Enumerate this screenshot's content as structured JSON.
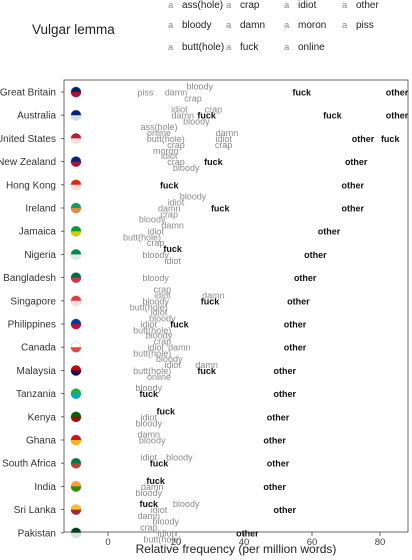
{
  "chart_data": {
    "type": "scatter",
    "xlabel": "Relative frequency (per million words)",
    "xlim": [
      -10,
      90
    ],
    "xticks": [
      0,
      20,
      40,
      60,
      80
    ],
    "legend": {
      "title": "Vulgar lemma",
      "placement": "top",
      "key_glyph": "a",
      "entries": [
        "ass(hole)",
        "crap",
        "idiot",
        "other",
        "bloody",
        "damn",
        "moron",
        "piss",
        "butt(hole)",
        "fuck",
        "online"
      ]
    },
    "series_colors": {
      "fuck": "#111111",
      "other": "#111111",
      "default": "#8a8a8a"
    },
    "countries": [
      {
        "name": "Great Britain",
        "flag": "gb-flag-icon",
        "points": [
          {
            "lemma": "piss",
            "x": 11
          },
          {
            "lemma": "damn",
            "x": 20
          },
          {
            "lemma": "bloody",
            "x": 27
          },
          {
            "lemma": "crap",
            "x": 25
          },
          {
            "lemma": "fuck",
            "x": 57
          },
          {
            "lemma": "other",
            "x": 85
          }
        ]
      },
      {
        "name": "Australia",
        "flag": "au-flag-icon",
        "points": [
          {
            "lemma": "damn",
            "x": 22
          },
          {
            "lemma": "idiot",
            "x": 21
          },
          {
            "lemma": "fuck",
            "x": 29
          },
          {
            "lemma": "bloody",
            "x": 26
          },
          {
            "lemma": "crap",
            "x": 31
          },
          {
            "lemma": "fuck",
            "x": 66
          },
          {
            "lemma": "other",
            "x": 85
          }
        ]
      },
      {
        "name": "United States",
        "flag": "us-flag-icon",
        "points": [
          {
            "lemma": "butt(hole)",
            "x": 17
          },
          {
            "lemma": "online",
            "x": 15
          },
          {
            "lemma": "crap",
            "x": 20
          },
          {
            "lemma": "ass(hole)",
            "x": 15
          },
          {
            "lemma": "moron",
            "x": 17
          },
          {
            "lemma": "idiot",
            "x": 34
          },
          {
            "lemma": "damn",
            "x": 35
          },
          {
            "lemma": "crap",
            "x": 34
          },
          {
            "lemma": "other",
            "x": 75
          },
          {
            "lemma": "fuck",
            "x": 83
          }
        ]
      },
      {
        "name": "New Zealand",
        "flag": "nz-flag-icon",
        "points": [
          {
            "lemma": "crap",
            "x": 20
          },
          {
            "lemma": "idiot",
            "x": 18
          },
          {
            "lemma": "bloody",
            "x": 23
          },
          {
            "lemma": "fuck",
            "x": 31
          },
          {
            "lemma": "other",
            "x": 73
          }
        ]
      },
      {
        "name": "Hong Kong",
        "flag": "hk-flag-icon",
        "points": [
          {
            "lemma": "fuck",
            "x": 18
          },
          {
            "lemma": "other",
            "x": 72
          }
        ]
      },
      {
        "name": "Ireland",
        "flag": "ie-flag-icon",
        "points": [
          {
            "lemma": "damn",
            "x": 18
          },
          {
            "lemma": "idiot",
            "x": 20
          },
          {
            "lemma": "crap",
            "x": 18
          },
          {
            "lemma": "bloody",
            "x": 25
          },
          {
            "lemma": "fuck",
            "x": 33
          },
          {
            "lemma": "other",
            "x": 72
          }
        ]
      },
      {
        "name": "Jamaica",
        "flag": "jm-flag-icon",
        "points": [
          {
            "lemma": "idiot",
            "x": 14
          },
          {
            "lemma": "damn",
            "x": 19
          },
          {
            "lemma": "butt(hole)",
            "x": 10
          },
          {
            "lemma": "bloody",
            "x": 13
          },
          {
            "lemma": "other",
            "x": 65
          }
        ]
      },
      {
        "name": "Nigeria",
        "flag": "ng-flag-icon",
        "points": [
          {
            "lemma": "bloody",
            "x": 14
          },
          {
            "lemma": "fuck",
            "x": 19
          },
          {
            "lemma": "idiot",
            "x": 19
          },
          {
            "lemma": "crap",
            "x": 14
          },
          {
            "lemma": "other",
            "x": 61
          }
        ]
      },
      {
        "name": "Bangladesh",
        "flag": "bd-flag-icon",
        "points": [
          {
            "lemma": "bloody",
            "x": 14
          },
          {
            "lemma": "other",
            "x": 58
          }
        ]
      },
      {
        "name": "Singapore",
        "flag": "sg-flag-icon",
        "points": [
          {
            "lemma": "bloody",
            "x": 14
          },
          {
            "lemma": "idiot",
            "x": 16
          },
          {
            "lemma": "fuck",
            "x": 30
          },
          {
            "lemma": "butt(hole)",
            "x": 12
          },
          {
            "lemma": "crap",
            "x": 16
          },
          {
            "lemma": "damn",
            "x": 31
          },
          {
            "lemma": "other",
            "x": 56
          }
        ]
      },
      {
        "name": "Philippines",
        "flag": "ph-flag-icon",
        "points": [
          {
            "lemma": "idiot",
            "x": 12
          },
          {
            "lemma": "bloody",
            "x": 16
          },
          {
            "lemma": "butt(hole)",
            "x": 13
          },
          {
            "lemma": "fuck",
            "x": 21
          },
          {
            "lemma": "idiot",
            "x": 15
          },
          {
            "lemma": "other",
            "x": 55
          }
        ]
      },
      {
        "name": "Canada",
        "flag": "ca-flag-icon",
        "points": [
          {
            "lemma": "idiot",
            "x": 14
          },
          {
            "lemma": "crap",
            "x": 16
          },
          {
            "lemma": "butt(hole)",
            "x": 13
          },
          {
            "lemma": "bloody",
            "x": 15
          },
          {
            "lemma": "damn",
            "x": 21
          },
          {
            "lemma": "other",
            "x": 55
          }
        ]
      },
      {
        "name": "Malaysia",
        "flag": "my-flag-icon",
        "points": [
          {
            "lemma": "butt(hole)",
            "x": 13
          },
          {
            "lemma": "idiot",
            "x": 19
          },
          {
            "lemma": "fuck",
            "x": 29
          },
          {
            "lemma": "online",
            "x": 15
          },
          {
            "lemma": "bloody",
            "x": 18
          },
          {
            "lemma": "damn",
            "x": 29
          },
          {
            "lemma": "other",
            "x": 52
          }
        ]
      },
      {
        "name": "Tanzania",
        "flag": "tz-flag-icon",
        "points": [
          {
            "lemma": "fuck",
            "x": 12
          },
          {
            "lemma": "bloody",
            "x": 12
          },
          {
            "lemma": "other",
            "x": 52
          }
        ]
      },
      {
        "name": "Kenya",
        "flag": "ke-flag-icon",
        "points": [
          {
            "lemma": "idiot",
            "x": 12
          },
          {
            "lemma": "fuck",
            "x": 17
          },
          {
            "lemma": "bloody",
            "x": 12
          },
          {
            "lemma": "other",
            "x": 50
          }
        ]
      },
      {
        "name": "Ghana",
        "flag": "gh-flag-icon",
        "points": [
          {
            "lemma": "bloody",
            "x": 13
          },
          {
            "lemma": "damn",
            "x": 12
          },
          {
            "lemma": "other",
            "x": 49
          }
        ]
      },
      {
        "name": "South Africa",
        "flag": "za-flag-icon",
        "points": [
          {
            "lemma": "fuck",
            "x": 15
          },
          {
            "lemma": "bloody",
            "x": 21
          },
          {
            "lemma": "idiot",
            "x": 12
          },
          {
            "lemma": "other",
            "x": 50
          }
        ]
      },
      {
        "name": "India",
        "flag": "in-flag-icon",
        "points": [
          {
            "lemma": "damn",
            "x": 13
          },
          {
            "lemma": "fuck",
            "x": 14
          },
          {
            "lemma": "bloody",
            "x": 12
          },
          {
            "lemma": "other",
            "x": 49
          }
        ]
      },
      {
        "name": "Sri Lanka",
        "flag": "lk-flag-icon",
        "points": [
          {
            "lemma": "idiot",
            "x": 15
          },
          {
            "lemma": "fuck",
            "x": 12
          },
          {
            "lemma": "damn",
            "x": 12
          },
          {
            "lemma": "bloody",
            "x": 23
          },
          {
            "lemma": "other",
            "x": 52
          }
        ]
      },
      {
        "name": "Pakistan",
        "flag": "pk-flag-icon",
        "points": [
          {
            "lemma": "idiot",
            "x": 17
          },
          {
            "lemma": "crap",
            "x": 12
          },
          {
            "lemma": "butt(hole)",
            "x": 16
          },
          {
            "lemma": "bloody",
            "x": 17
          },
          {
            "lemma": "other",
            "x": 41
          }
        ]
      }
    ]
  }
}
